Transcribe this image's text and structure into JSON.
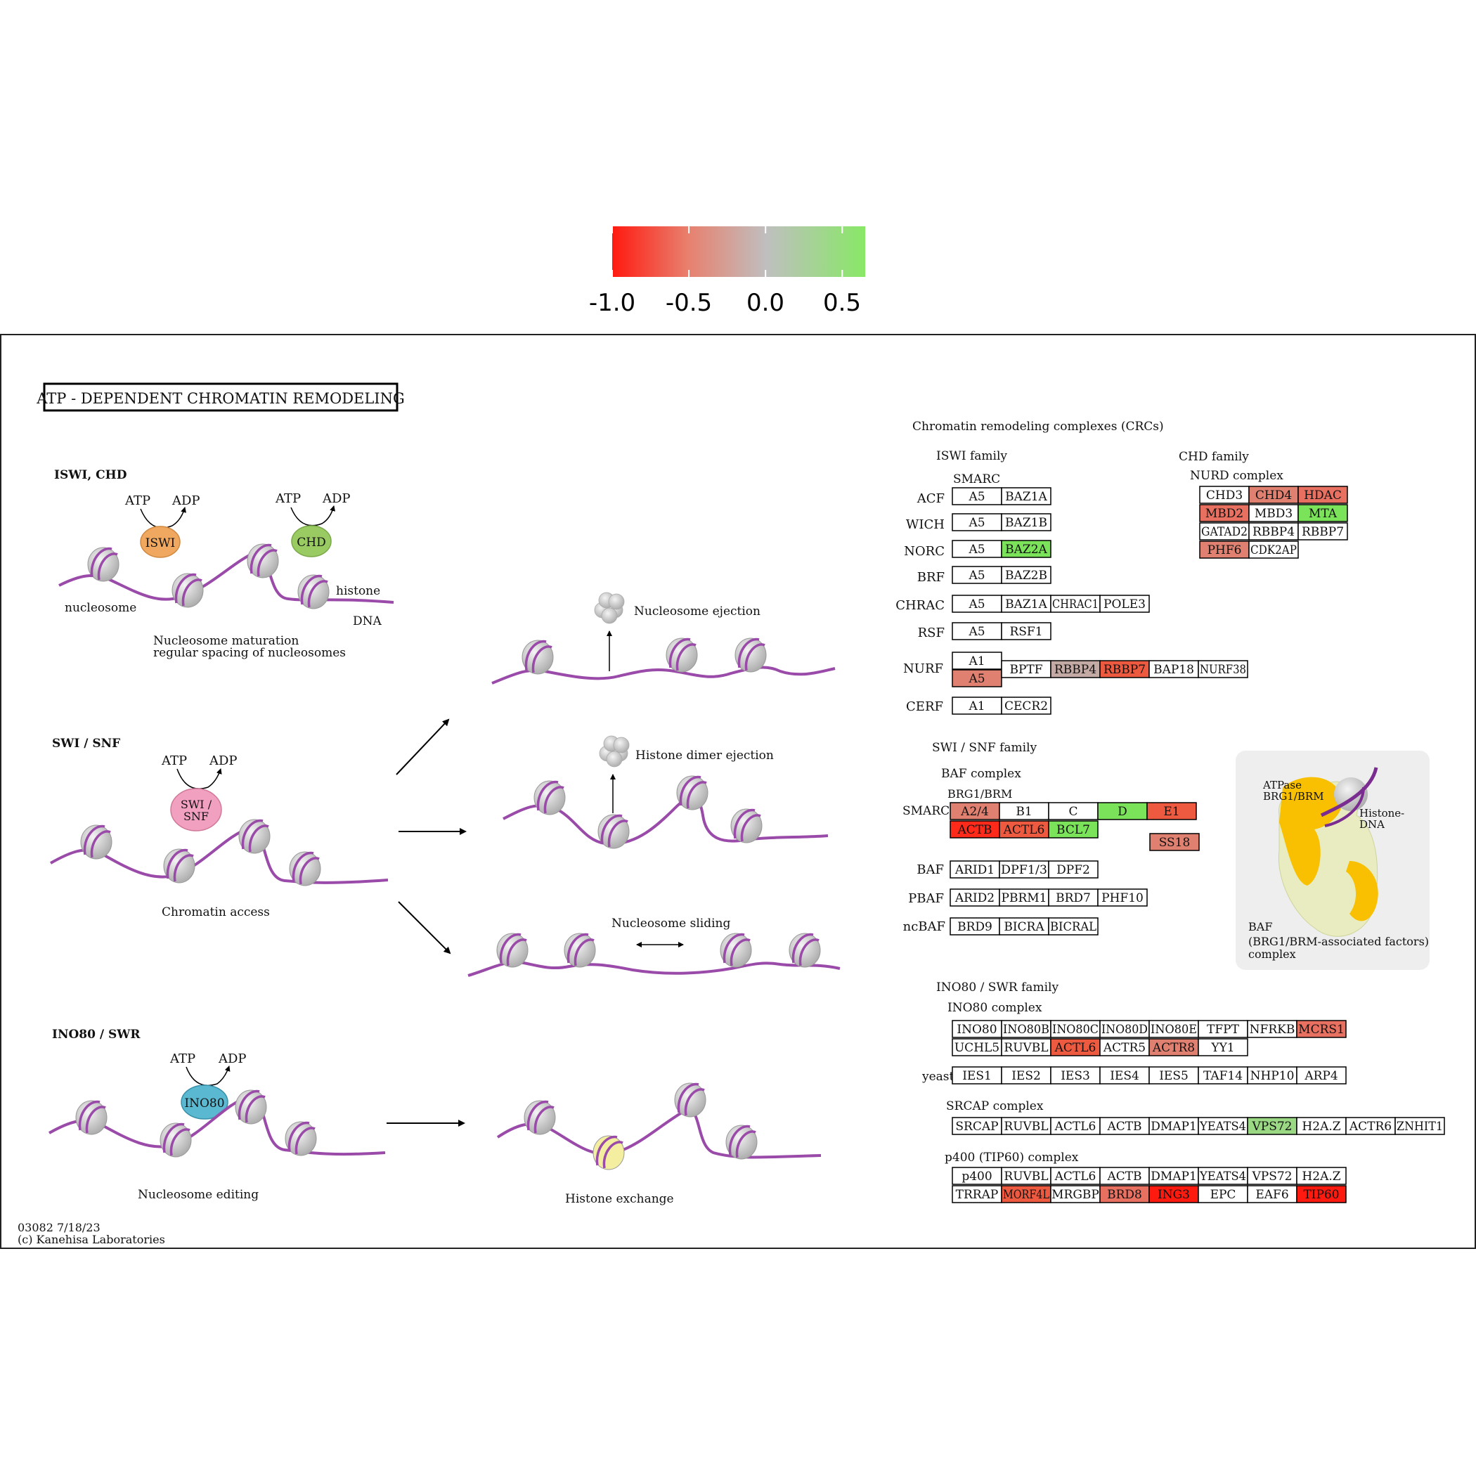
{
  "legend": {
    "ticks": [
      "-1.0",
      "-0.5",
      "0.0",
      "0.5"
    ],
    "tick_values": [
      -1.0,
      -0.5,
      0.0,
      0.5
    ],
    "range": [
      -1.0,
      0.65
    ],
    "colors": {
      "low": "#ff0000",
      "mid": "#bfbfbf",
      "high": "#8ae86a"
    }
  },
  "map": {
    "title": "ATP - DEPENDENT  CHROMATIN  REMODELING",
    "footer_id": "03082 7/18/23",
    "footer_copyright": "(c) Kanehisa Laboratories",
    "colors": {
      "dna": "#9a4aa8",
      "nucleosome": "#c8c8c8"
    }
  },
  "left": {
    "iswi_chd": {
      "heading": "ISWI, CHD",
      "atp": "ATP",
      "adp": "ADP",
      "iswi": "ISWI",
      "chd": "CHD",
      "histone": "histone",
      "nucleosome": "nucleosome",
      "dna": "DNA",
      "caption1": "Nucleosome maturation",
      "caption2": "regular spacing of nucleosomes"
    },
    "swi_snf": {
      "heading": "SWI / SNF",
      "atp": "ATP",
      "adp": "ADP",
      "enzyme1": "SWI /",
      "enzyme2": "SNF",
      "caption": "Chromatin access"
    },
    "ino80": {
      "heading": "INO80 / SWR",
      "atp": "ATP",
      "adp": "ADP",
      "enzyme": "INO80",
      "caption": "Nucleosome editing"
    }
  },
  "middle": {
    "ejection": "Nucleosome ejection",
    "dimer": "Histone dimer ejection",
    "sliding": "Nucleosome sliding",
    "exchange": "Histone exchange"
  },
  "right": {
    "crc_title": "Chromatin remodeling complexes (CRCs)",
    "iswi_family": "ISWI family",
    "smarc": "SMARC",
    "chd_family": "CHD family",
    "nurd": "NURD complex",
    "swi_family": "SWI / SNF family",
    "baf_complex": "BAF complex",
    "brg": "BRG1/BRM",
    "smarc2": "SMARC",
    "ino_family": "INO80 / SWR family",
    "ino_complex": "INO80 complex",
    "yeast": "yeast",
    "srcap": "SRCAP complex",
    "p400": "p400 (TIP60) complex",
    "baf_atpase1": "ATPase",
    "baf_atpase2": "BRG1/BRM",
    "baf_histone1": "Histone-",
    "baf_histone2": "DNA",
    "baf_caption1": "BAF",
    "baf_caption2": "(BRG1/BRM-associated factors)",
    "baf_caption3": "complex"
  },
  "row_labels": [
    {
      "text": "ACF"
    },
    {
      "text": "WICH"
    },
    {
      "text": "NORC"
    },
    {
      "text": "BRF"
    },
    {
      "text": "CHRAC"
    },
    {
      "text": "RSF"
    },
    {
      "text": "NURF"
    },
    {
      "text": "CERF"
    },
    {
      "text": "BAF"
    },
    {
      "text": "PBAF"
    },
    {
      "text": "ncBAF"
    }
  ],
  "gene_boxes": [
    {
      "text": "A5",
      "fill": "#ffffff"
    },
    {
      "text": "BAZ1A",
      "fill": "#ffffff"
    },
    {
      "text": "A5",
      "fill": "#ffffff"
    },
    {
      "text": "BAZ1B",
      "fill": "#ffffff"
    },
    {
      "text": "A5",
      "fill": "#ffffff"
    },
    {
      "text": "BAZ2A",
      "fill": "#7be35a"
    },
    {
      "text": "A5",
      "fill": "#ffffff"
    },
    {
      "text": "BAZ2B",
      "fill": "#ffffff"
    },
    {
      "text": "A5",
      "fill": "#ffffff"
    },
    {
      "text": "BAZ1A",
      "fill": "#ffffff"
    },
    {
      "text": "CHRAC1",
      "fill": "#ffffff"
    },
    {
      "text": "POLE3",
      "fill": "#ffffff"
    },
    {
      "text": "A5",
      "fill": "#ffffff"
    },
    {
      "text": "RSF1",
      "fill": "#ffffff"
    },
    {
      "text": "A1",
      "fill": "#ffffff"
    },
    {
      "text": "A5",
      "fill": "#e08070"
    },
    {
      "text": "BPTF",
      "fill": "#ffffff"
    },
    {
      "text": "RBBP4",
      "fill": "#c4aaa5"
    },
    {
      "text": "RBBP7",
      "fill": "#ee5a40"
    },
    {
      "text": "BAP18",
      "fill": "#ffffff"
    },
    {
      "text": "NURF38",
      "fill": "#ffffff"
    },
    {
      "text": "A1",
      "fill": "#ffffff"
    },
    {
      "text": "CECR2",
      "fill": "#ffffff"
    },
    {
      "text": "CHD3",
      "fill": "#ffffff"
    },
    {
      "text": "CHD4",
      "fill": "#e08070"
    },
    {
      "text": "HDAC",
      "fill": "#e87060"
    },
    {
      "text": "MBD2",
      "fill": "#e87060"
    },
    {
      "text": "MBD3",
      "fill": "#ffffff"
    },
    {
      "text": "MTA",
      "fill": "#7be35a"
    },
    {
      "text": "GATAD2",
      "fill": "#ffffff"
    },
    {
      "text": "RBBP4",
      "fill": "#ffffff"
    },
    {
      "text": "RBBP7",
      "fill": "#ffffff"
    },
    {
      "text": "PHF6",
      "fill": "#e08070"
    },
    {
      "text": "CDK2AP",
      "fill": "#ffffff"
    },
    {
      "text": "A2/4",
      "fill": "#e08070"
    },
    {
      "text": "B1",
      "fill": "#ffffff"
    },
    {
      "text": "C",
      "fill": "#ffffff"
    },
    {
      "text": "D",
      "fill": "#7be35a"
    },
    {
      "text": "E1",
      "fill": "#ee5a40"
    },
    {
      "text": "ACTB",
      "fill": "#ff2a1a"
    },
    {
      "text": "ACTL6",
      "fill": "#ee5a40"
    },
    {
      "text": "BCL7",
      "fill": "#7be35a"
    },
    {
      "text": "SS18",
      "fill": "#e08070"
    },
    {
      "text": "ARID1",
      "fill": "#ffffff"
    },
    {
      "text": "DPF1/3",
      "fill": "#ffffff"
    },
    {
      "text": "DPF2",
      "fill": "#ffffff"
    },
    {
      "text": "ARID2",
      "fill": "#ffffff"
    },
    {
      "text": "PBRM1",
      "fill": "#ffffff"
    },
    {
      "text": "BRD7",
      "fill": "#ffffff"
    },
    {
      "text": "PHF10",
      "fill": "#ffffff"
    },
    {
      "text": "BRD9",
      "fill": "#ffffff"
    },
    {
      "text": "BICRA",
      "fill": "#ffffff"
    },
    {
      "text": "BICRAL",
      "fill": "#ffffff"
    },
    {
      "text": "INO80",
      "fill": "#ffffff"
    },
    {
      "text": "INO80B",
      "fill": "#ffffff"
    },
    {
      "text": "INO80C",
      "fill": "#ffffff"
    },
    {
      "text": "INO80D",
      "fill": "#ffffff"
    },
    {
      "text": "INO80E",
      "fill": "#ffffff"
    },
    {
      "text": "TFPT",
      "fill": "#ffffff"
    },
    {
      "text": "NFRKB",
      "fill": "#ffffff"
    },
    {
      "text": "MCRS1",
      "fill": "#e87060"
    },
    {
      "text": "UCHL5",
      "fill": "#ffffff"
    },
    {
      "text": "RUVBL",
      "fill": "#ffffff"
    },
    {
      "text": "ACTL6",
      "fill": "#ee5a40"
    },
    {
      "text": "ACTR5",
      "fill": "#ffffff"
    },
    {
      "text": "ACTR8",
      "fill": "#e08070"
    },
    {
      "text": "YY1",
      "fill": "#ffffff"
    },
    {
      "text": "IES1",
      "fill": "#ffffff"
    },
    {
      "text": "IES2",
      "fill": "#ffffff"
    },
    {
      "text": "IES3",
      "fill": "#ffffff"
    },
    {
      "text": "IES4",
      "fill": "#ffffff"
    },
    {
      "text": "IES5",
      "fill": "#ffffff"
    },
    {
      "text": "TAF14",
      "fill": "#ffffff"
    },
    {
      "text": "NHP10",
      "fill": "#ffffff"
    },
    {
      "text": "ARP4",
      "fill": "#ffffff"
    },
    {
      "text": "SRCAP",
      "fill": "#ffffff"
    },
    {
      "text": "RUVBL",
      "fill": "#ffffff"
    },
    {
      "text": "ACTL6",
      "fill": "#ffffff"
    },
    {
      "text": "ACTB",
      "fill": "#ffffff"
    },
    {
      "text": "DMAP1",
      "fill": "#ffffff"
    },
    {
      "text": "YEATS4",
      "fill": "#ffffff"
    },
    {
      "text": "VPS72",
      "fill": "#9ad884"
    },
    {
      "text": "H2A.Z",
      "fill": "#ffffff"
    },
    {
      "text": "ACTR6",
      "fill": "#ffffff"
    },
    {
      "text": "ZNHIT1",
      "fill": "#ffffff"
    },
    {
      "text": "p400",
      "fill": "#ffffff"
    },
    {
      "text": "RUVBL",
      "fill": "#ffffff"
    },
    {
      "text": "ACTL6",
      "fill": "#ffffff"
    },
    {
      "text": "ACTB",
      "fill": "#ffffff"
    },
    {
      "text": "DMAP1",
      "fill": "#ffffff"
    },
    {
      "text": "YEATS4",
      "fill": "#ffffff"
    },
    {
      "text": "VPS72",
      "fill": "#ffffff"
    },
    {
      "text": "H2A.Z",
      "fill": "#ffffff"
    },
    {
      "text": "TRRAP",
      "fill": "#ffffff"
    },
    {
      "text": "MORF4L",
      "fill": "#ee5a40"
    },
    {
      "text": "MRGBP",
      "fill": "#ffffff"
    },
    {
      "text": "BRD8",
      "fill": "#e87060"
    },
    {
      "text": "ING3",
      "fill": "#ff1a10"
    },
    {
      "text": "EPC",
      "fill": "#ffffff"
    },
    {
      "text": "EAF6",
      "fill": "#ffffff"
    },
    {
      "text": "TIP60",
      "fill": "#ff1a10"
    }
  ]
}
